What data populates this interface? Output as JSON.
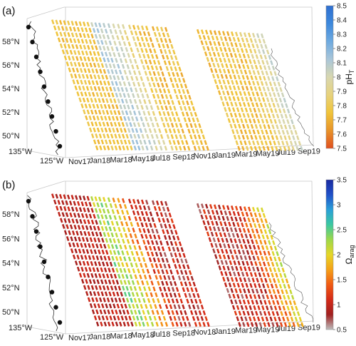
{
  "chart_data": [
    {
      "type": "scatter",
      "panel_label": "(a)",
      "description_kind": "3D time-latitude-longitude ship track scatter colored by value",
      "lat_ticks": [
        "50°N",
        "52°N",
        "54°N",
        "56°N",
        "58°N"
      ],
      "lat_values": [
        50,
        52,
        54,
        56,
        58
      ],
      "lon_ticks": [
        "135°W",
        "125°W"
      ],
      "lon_values": [
        -135,
        -125
      ],
      "time_ticks": [
        "Nov17",
        "Jan18",
        "Mar18",
        "May18",
        "Jul18",
        "Sep18",
        "Nov18",
        "Jan19",
        "Mar19",
        "May19",
        "Jul19",
        "Sep19"
      ],
      "colorbar": {
        "label": "pH",
        "label_subscript": "T",
        "ticks": [
          "8.5",
          "8.4",
          "8.3",
          "8.2",
          "8.1",
          "8",
          "7.9",
          "7.8",
          "7.7",
          "7.6",
          "7.5"
        ],
        "range": [
          7.5,
          8.5
        ],
        "colormap": [
          "#e05020",
          "#e8932a",
          "#f0c43a",
          "#e7d27c",
          "#d8d7b0",
          "#a9c6d9",
          "#6eaae0",
          "#3d88dc",
          "#2f6fd0"
        ]
      },
      "series_colors": {
        "early_low": "#e8a62c",
        "mid": "#f0c84a",
        "high": "#6aa6dc",
        "very_high": "#3a7fd6"
      }
    },
    {
      "type": "scatter",
      "panel_label": "(b)",
      "description_kind": "3D time-latitude-longitude ship track scatter colored by value",
      "lat_ticks": [
        "50°N",
        "52°N",
        "54°N",
        "56°N",
        "58°N"
      ],
      "lat_values": [
        50,
        52,
        54,
        56,
        58
      ],
      "lon_ticks": [
        "135°W",
        "125°W"
      ],
      "lon_values": [
        -135,
        -125
      ],
      "time_ticks": [
        "Nov17",
        "Jan18",
        "Mar18",
        "May18",
        "Jul18",
        "Sep18",
        "Nov18",
        "Jan19",
        "Mar19",
        "May19",
        "Jul19",
        "Sep19"
      ],
      "colorbar": {
        "label": "Ω",
        "label_subscript": "arag",
        "ticks": [
          "3.5",
          "3",
          "2.5",
          "2",
          "1.5",
          "1",
          "0.5"
        ],
        "range": [
          0.5,
          3.5
        ],
        "colormap": [
          "#bdbdbd",
          "#a02020",
          "#d42a18",
          "#f05a14",
          "#f5a018",
          "#e6d628",
          "#9ed84a",
          "#3cc8a0",
          "#2aa0d8",
          "#2050c8",
          "#1a2aa0"
        ]
      },
      "series_colors": {
        "low": "#b81e14",
        "mid": "#f06a18",
        "high": "#b8e03a",
        "very_high": "#2aa8d0"
      }
    }
  ]
}
